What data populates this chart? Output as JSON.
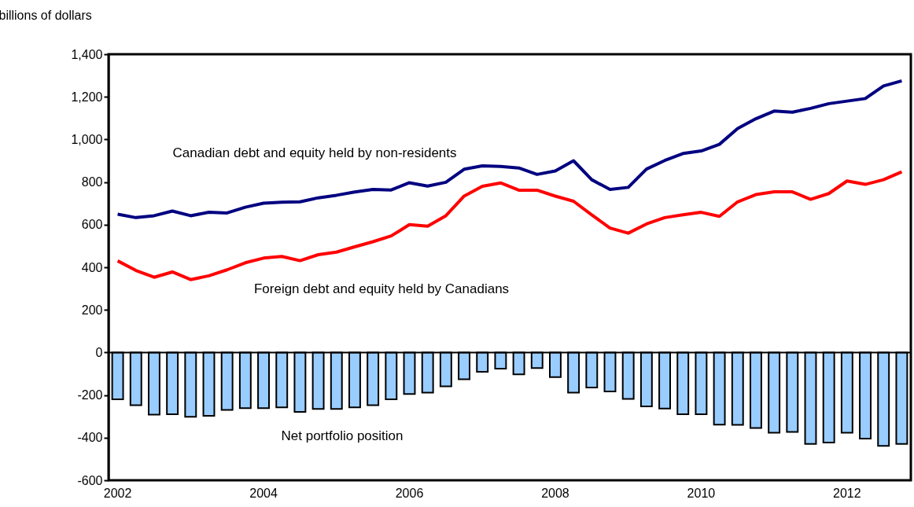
{
  "chart_data": {
    "type": "line",
    "ylabel": "billions of dollars",
    "categories": [
      "2002",
      null,
      null,
      null,
      null,
      null,
      null,
      null,
      "2004",
      null,
      null,
      null,
      null,
      null,
      null,
      null,
      "2006",
      null,
      null,
      null,
      null,
      null,
      null,
      null,
      "2008",
      null,
      null,
      null,
      null,
      null,
      null,
      null,
      "2010",
      null,
      null,
      null,
      null,
      null,
      null,
      null,
      "2012",
      null,
      null,
      null
    ],
    "series": [
      {
        "name": "Net portfolio position",
        "type": "bar",
        "color": "#99ccff",
        "values": [
          -220,
          -248,
          -292,
          -290,
          -302,
          -297,
          -270,
          -261,
          -261,
          -258,
          -279,
          -265,
          -265,
          -258,
          -248,
          -220,
          -195,
          -189,
          -159,
          -126,
          -91,
          -76,
          -103,
          -73,
          -116,
          -189,
          -165,
          -183,
          -218,
          -253,
          -263,
          -290,
          -290,
          -339,
          -340,
          -355,
          -377,
          -373,
          -429,
          -423,
          -377,
          -404,
          -439,
          -429
        ]
      },
      {
        "name": "Canadian debt and equity held by non-residents",
        "color": "#000080",
        "values": [
          649,
          633,
          642,
          664,
          642,
          658,
          655,
          682,
          701,
          705,
          707,
          726,
          738,
          753,
          765,
          763,
          797,
          781,
          799,
          860,
          876,
          873,
          866,
          836,
          852,
          900,
          811,
          765,
          775,
          861,
          901,
          934,
          946,
          977,
          1051,
          1097,
          1133,
          1128,
          1146,
          1168,
          1180,
          1192,
          1251,
          1275
        ]
      },
      {
        "name": "Foreign debt and equity held by Canadians",
        "color": "#ff0000",
        "values": [
          430,
          385,
          353,
          378,
          342,
          360,
          388,
          421,
          443,
          451,
          431,
          459,
          471,
          496,
          520,
          547,
          600,
          593,
          642,
          734,
          780,
          796,
          762,
          762,
          734,
          710,
          646,
          584,
          560,
          603,
          633,
          646,
          658,
          639,
          707,
          741,
          754,
          754,
          719,
          746,
          805,
          789,
          811,
          848
        ]
      }
    ],
    "ylim": [
      -600,
      1400
    ],
    "yticks": [
      {
        "value": -600,
        "label": "-600"
      },
      {
        "value": -400,
        "label": "-400"
      },
      {
        "value": -200,
        "label": "-200"
      },
      0,
      200,
      400,
      600,
      800,
      {
        "value": 1000,
        "label": "1,000"
      },
      {
        "value": 1200,
        "label": "1,200"
      },
      {
        "value": 1400,
        "label": "1,400"
      }
    ],
    "ref_lines": [
      {
        "axis": "y",
        "value": 0,
        "color": "#000000"
      }
    ]
  }
}
